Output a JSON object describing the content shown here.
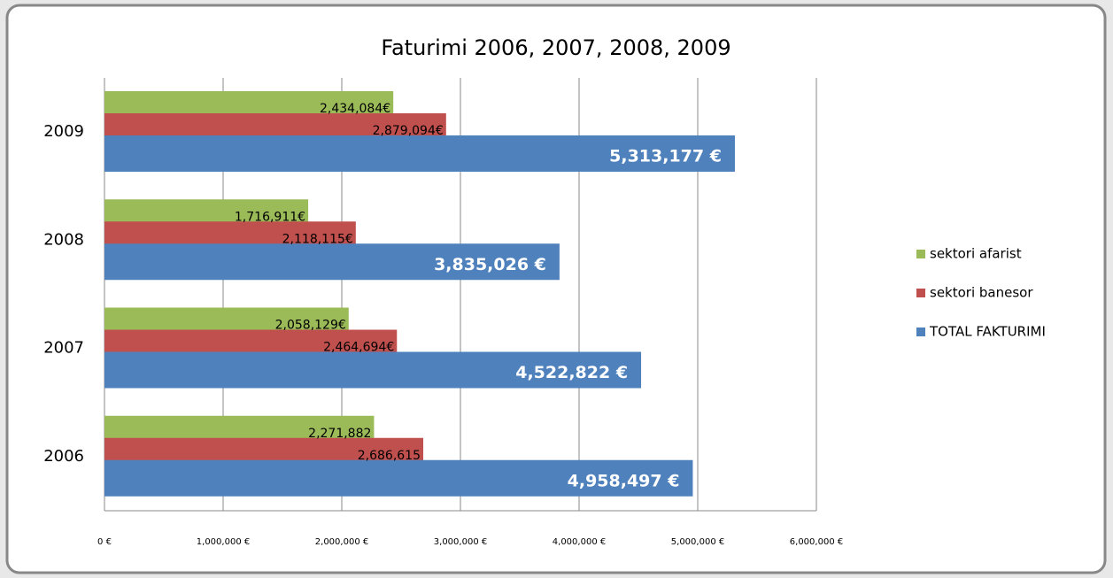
{
  "chart_data": {
    "type": "hbar",
    "title": "Faturimi 2006, 2007, 2008, 2009",
    "categories": [
      "2009",
      "2008",
      "2007",
      "2006"
    ],
    "series": [
      {
        "name": "sektori afarist",
        "color": "#9bbb59",
        "values": [
          2434084,
          1716911,
          2058129,
          2271882
        ],
        "value_labels": [
          "2,434,084€",
          "1,716,911€",
          "2,058,129€",
          "2,271,882"
        ]
      },
      {
        "name": "sektori banesor",
        "color": "#c0504d",
        "values": [
          2879094,
          2118115,
          2464694,
          2686615
        ],
        "value_labels": [
          "2,879,094€",
          "2,118,115€",
          "2,464,694€",
          "2,686,615"
        ]
      },
      {
        "name": "TOTAL FAKTURIMI",
        "color": "#4f81bd",
        "values": [
          5313177,
          3835026,
          4522822,
          4958497
        ],
        "value_labels": [
          "5,313,177 €",
          "3,835,026 €",
          "4,522,822 €",
          "4,958,497 €"
        ]
      }
    ],
    "xlim": [
      0,
      6000000
    ],
    "xticks": [
      {
        "value": 0,
        "label": "0 €"
      },
      {
        "value": 1000000,
        "label": "1,000,000 €"
      },
      {
        "value": 2000000,
        "label": "2,000,000 €"
      },
      {
        "value": 3000000,
        "label": "3,000,000 €"
      },
      {
        "value": 4000000,
        "label": "4,000,000 €"
      },
      {
        "value": 5000000,
        "label": "5,000,000 €"
      },
      {
        "value": 6000000,
        "label": "6,000,000 €"
      }
    ],
    "grid": true,
    "legend": "right"
  }
}
